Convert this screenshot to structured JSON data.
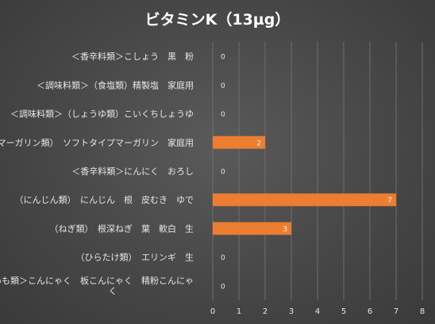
{
  "chart_data": {
    "type": "bar",
    "orientation": "horizontal",
    "title": "ビタミンK（13µg）",
    "categories": [
      "＜香辛料類＞こしょう　黒　粉",
      "＜調味料類＞（食塩類）精製塩　家庭用",
      "＜調味料類＞（しょうゆ類）こいくちしょうゆ",
      "（マーガリン類）　ソフトタイプマーガリン　家庭用",
      "＜香辛料類＞にんにく　おろし",
      "（にんじん類）　にんじん　根　皮むき　ゆで",
      "（ねぎ類）　根深ねぎ　葉　軟白　生",
      "（ひらたけ類）　エリンギ　生",
      [
        "＜いも類＞こんにゃく　板こんにゃく　精粉こんにゃ",
        "く"
      ]
    ],
    "values": [
      0,
      0,
      0,
      2,
      0,
      7,
      3,
      0,
      0
    ],
    "xlim": [
      0,
      8
    ],
    "xticks": [
      0,
      1,
      2,
      3,
      4,
      5,
      6,
      7,
      8
    ],
    "grid": true,
    "data_labels": true,
    "colors": {
      "bar": "#ed7d31",
      "grid": "#6e6e6e",
      "text": "#e6e6e6"
    }
  }
}
